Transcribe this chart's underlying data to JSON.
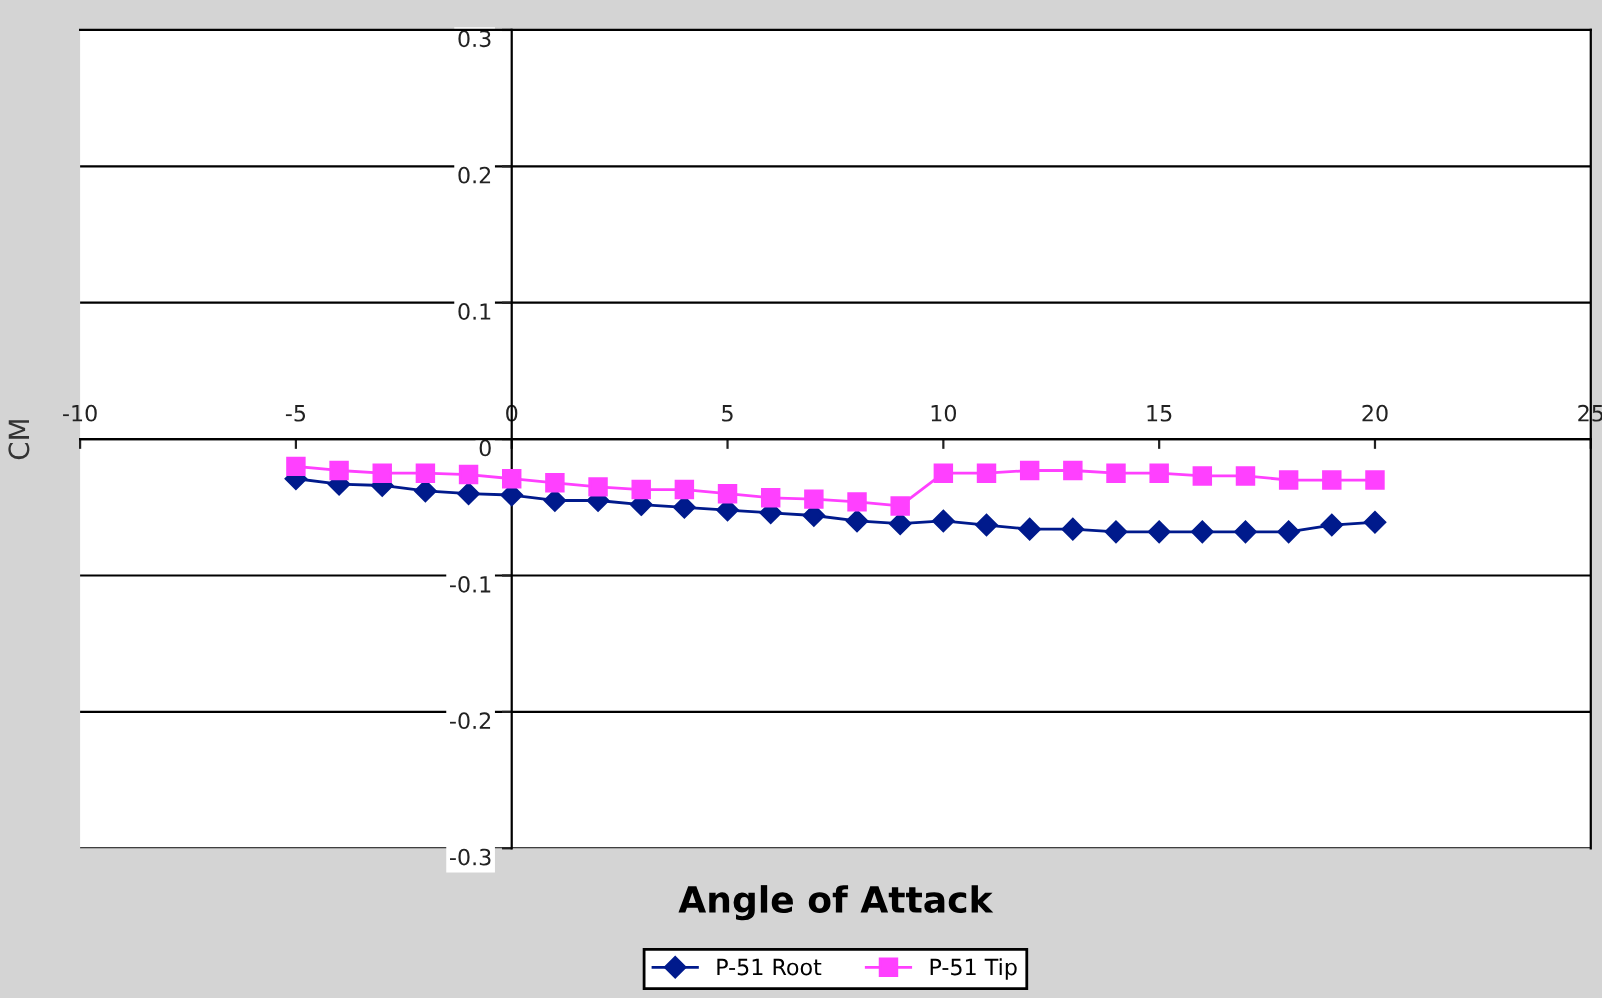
{
  "chart_data": {
    "type": "line",
    "xlabel": "Angle of Attack",
    "ylabel": "CM",
    "xlim": [
      -10,
      25
    ],
    "xticks": [
      -10,
      -5,
      0,
      5,
      10,
      15,
      20,
      25
    ],
    "ylim": [
      -0.3,
      0.3
    ],
    "yticks": [
      -0.3,
      -0.2,
      -0.1,
      0,
      0.1,
      0.2,
      0.3
    ],
    "grid": "y",
    "legend": "bottom",
    "x": [
      -5,
      -4,
      -3,
      -2,
      -1,
      0,
      1,
      2,
      3,
      4,
      5,
      6,
      7,
      8,
      9,
      10,
      11,
      12,
      13,
      14,
      15,
      16,
      17,
      18,
      19,
      20
    ],
    "series": [
      {
        "name": "P-51 Root",
        "color": "#001a8c",
        "marker": "diamond",
        "values": [
          -0.029,
          -0.033,
          -0.034,
          -0.038,
          -0.04,
          -0.041,
          -0.045,
          -0.045,
          -0.048,
          -0.05,
          -0.052,
          -0.054,
          -0.056,
          -0.06,
          -0.062,
          -0.06,
          -0.063,
          -0.066,
          -0.066,
          -0.068,
          -0.068,
          -0.068,
          -0.068,
          -0.068,
          -0.063,
          -0.061
        ]
      },
      {
        "name": "P-51 Tip",
        "color": "#ff40ff",
        "marker": "square",
        "values": [
          -0.02,
          -0.023,
          -0.025,
          -0.025,
          -0.026,
          -0.029,
          -0.032,
          -0.035,
          -0.037,
          -0.037,
          -0.04,
          -0.043,
          -0.044,
          -0.046,
          -0.049,
          -0.025,
          -0.025,
          -0.023,
          -0.023,
          -0.025,
          -0.025,
          -0.027,
          -0.027,
          -0.03,
          -0.03,
          -0.03
        ]
      }
    ]
  }
}
